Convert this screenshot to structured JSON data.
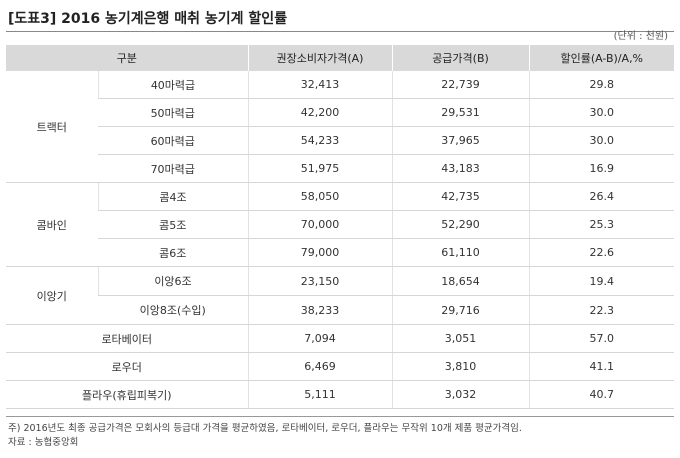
{
  "title": "[도표3] 2016 농기계은행 매취 농기계 할인률",
  "unit": "(단위 : 천원)",
  "headers": [
    "구분",
    "권장소비자가격(A)",
    "공급가격(B)",
    "할인률(A-B)/A,%"
  ],
  "groups": {
    "tractor": "트랙터",
    "combine": "콤바인",
    "transplanter": "이앙기"
  },
  "rows": [
    {
      "sub": "40마력급",
      "a": "32,413",
      "b": "22,739",
      "rate": "29.8"
    },
    {
      "sub": "50마력급",
      "a": "42,200",
      "b": "29,531",
      "rate": "30.0"
    },
    {
      "sub": "60마력급",
      "a": "54,233",
      "b": "37,965",
      "rate": "30.0"
    },
    {
      "sub": "70마력급",
      "a": "51,975",
      "b": "43,183",
      "rate": "16.9"
    },
    {
      "sub": "콤4조",
      "a": "58,050",
      "b": "42,735",
      "rate": "26.4"
    },
    {
      "sub": "콤5조",
      "a": "70,000",
      "b": "52,290",
      "rate": "25.3"
    },
    {
      "sub": "콤6조",
      "a": "79,000",
      "b": "61,110",
      "rate": "22.6"
    },
    {
      "sub": "이앙6조",
      "a": "23,150",
      "b": "18,654",
      "rate": "19.4"
    },
    {
      "sub": "이앙8조(수입)",
      "a": "38,233",
      "b": "29,716",
      "rate": "22.3"
    },
    {
      "sub": "로타베이터",
      "a": "7,094",
      "b": "3,051",
      "rate": "57.0"
    },
    {
      "sub": "로우더",
      "a": "6,469",
      "b": "3,810",
      "rate": "41.1"
    },
    {
      "sub": "플라우(휴립피복기)",
      "a": "5,111",
      "b": "3,032",
      "rate": "40.7"
    }
  ],
  "note": "주) 2016년도 최종 공급가격은 모회사의 등급대 가격을 평균하였음, 로타베이터, 로우더, 플라우는 무작위 10개 제품 평균가격임.",
  "source": "자료 : 농협중앙회"
}
